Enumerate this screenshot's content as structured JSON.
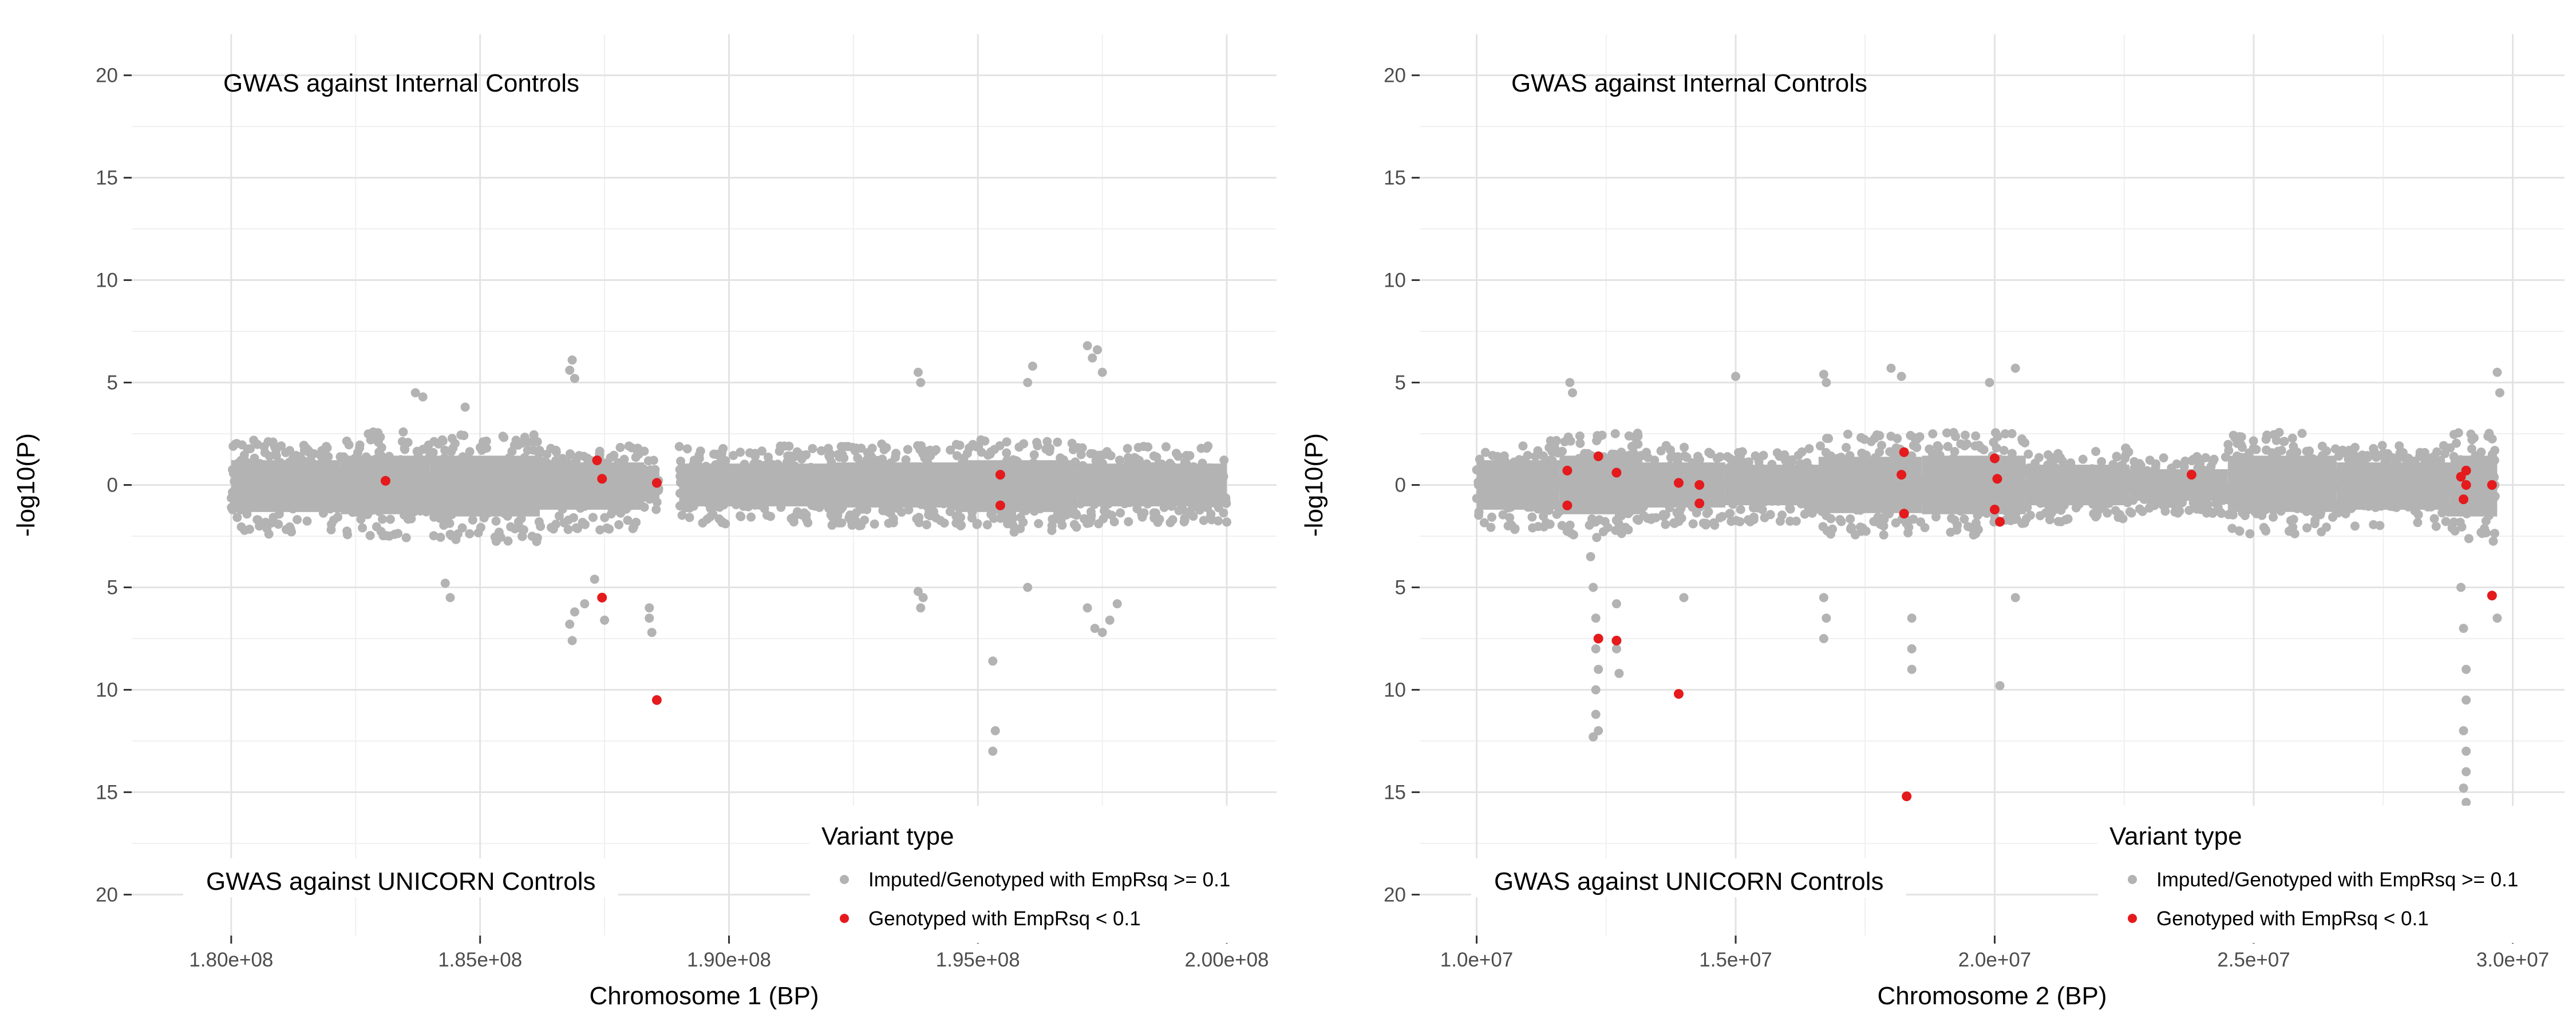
{
  "chart_data": [
    {
      "type": "scatter",
      "xlabel": "Chromosome 1 (BP)",
      "ylabel": "-log10(P)",
      "xlim": [
        178000000,
        201000000
      ],
      "ylim": [
        -22,
        22
      ],
      "x_ticks": [
        {
          "value": 180000000,
          "label": "1.80e+08"
        },
        {
          "value": 185000000,
          "label": "1.85e+08"
        },
        {
          "value": 190000000,
          "label": "1.90e+08"
        },
        {
          "value": 195000000,
          "label": "1.95e+08"
        },
        {
          "value": 200000000,
          "label": "2.00e+08"
        }
      ],
      "y_ticks": [
        {
          "value": 20,
          "label": "20"
        },
        {
          "value": 15,
          "label": "15"
        },
        {
          "value": 10,
          "label": "10"
        },
        {
          "value": 5,
          "label": "5"
        },
        {
          "value": 0,
          "label": "0"
        },
        {
          "value": -5,
          "label": "5"
        },
        {
          "value": -10,
          "label": "10"
        },
        {
          "value": -15,
          "label": "15"
        },
        {
          "value": -20,
          "label": "20"
        }
      ],
      "annotations": [
        "GWAS against Internal Controls",
        "GWAS against UNICORN Controls"
      ],
      "grid": true,
      "legend": {
        "title": "Variant type",
        "placement": "bottom-right",
        "entries": [
          {
            "label": "Imputed/Genotyped with EmpRsq >= 0.1",
            "color": "#b3b3b3"
          },
          {
            "label": "Genotyped with EmpRsq < 0.1",
            "color": "#e41a1c"
          }
        ]
      },
      "series": [
        {
          "name": "Imputed/Genotyped with EmpRsq >= 0.1",
          "color": "#b3b3b3",
          "bands": [
            {
              "x": [
                180000000,
                182200000
              ],
              "top": 2.2,
              "bottom": -2.4
            },
            {
              "x": [
                182200000,
                184000000
              ],
              "top": 2.6,
              "bottom": -2.6
            },
            {
              "x": [
                184000000,
                186200000
              ],
              "top": 2.6,
              "bottom": -2.8
            },
            {
              "x": [
                186200000,
                188300000
              ],
              "top": 2.0,
              "bottom": -2.2
            },
            {
              "x": [
                188300000,
                188600000
              ],
              "top": 1.4,
              "bottom": -1.2
            },
            {
              "x": [
                189000000,
                192000000
              ],
              "top": 1.9,
              "bottom": -1.9
            },
            {
              "x": [
                192000000,
                194600000
              ],
              "top": 2.0,
              "bottom": -2.0
            },
            {
              "x": [
                194600000,
                197000000
              ],
              "top": 2.2,
              "bottom": -2.4
            },
            {
              "x": [
                197000000,
                200000000
              ],
              "top": 1.9,
              "bottom": -1.9
            }
          ],
          "points": [
            {
              "x": 183700000,
              "y": 4.5
            },
            {
              "x": 183850000,
              "y": 4.3
            },
            {
              "x": 184700000,
              "y": 3.8
            },
            {
              "x": 184400000,
              "y": -5.5
            },
            {
              "x": 184300000,
              "y": -4.8
            },
            {
              "x": 186800000,
              "y": 5.6
            },
            {
              "x": 186850000,
              "y": 6.1
            },
            {
              "x": 186900000,
              "y": 5.2
            },
            {
              "x": 186800000,
              "y": -6.8
            },
            {
              "x": 186850000,
              "y": -7.6
            },
            {
              "x": 186900000,
              "y": -6.2
            },
            {
              "x": 187100000,
              "y": -5.8
            },
            {
              "x": 187500000,
              "y": -6.6
            },
            {
              "x": 187300000,
              "y": -4.6
            },
            {
              "x": 188400000,
              "y": -6.0
            },
            {
              "x": 188450000,
              "y": -7.2
            },
            {
              "x": 188400000,
              "y": -6.5
            },
            {
              "x": 193800000,
              "y": 5.5
            },
            {
              "x": 193850000,
              "y": 5.0
            },
            {
              "x": 193800000,
              "y": -5.2
            },
            {
              "x": 193850000,
              "y": -6.0
            },
            {
              "x": 193900000,
              "y": -5.5
            },
            {
              "x": 195300000,
              "y": -8.6
            },
            {
              "x": 195350000,
              "y": -12.0
            },
            {
              "x": 195300000,
              "y": -13.0
            },
            {
              "x": 196000000,
              "y": 5.0
            },
            {
              "x": 196100000,
              "y": 5.8
            },
            {
              "x": 196000000,
              "y": -5.0
            },
            {
              "x": 197200000,
              "y": 6.8
            },
            {
              "x": 197300000,
              "y": 6.2
            },
            {
              "x": 197400000,
              "y": 6.6
            },
            {
              "x": 197500000,
              "y": 5.5
            },
            {
              "x": 197200000,
              "y": -6.0
            },
            {
              "x": 197350000,
              "y": -7.0
            },
            {
              "x": 197500000,
              "y": -7.2
            },
            {
              "x": 197650000,
              "y": -6.6
            },
            {
              "x": 197800000,
              "y": -5.8
            }
          ]
        },
        {
          "name": "Genotyped with EmpRsq < 0.1",
          "color": "#e41a1c",
          "points": [
            {
              "x": 183100000,
              "y": 0.2
            },
            {
              "x": 187350000,
              "y": 1.2
            },
            {
              "x": 187450000,
              "y": 0.3
            },
            {
              "x": 187450000,
              "y": -5.5
            },
            {
              "x": 188550000,
              "y": 0.1
            },
            {
              "x": 188550000,
              "y": -10.5
            },
            {
              "x": 195450000,
              "y": 0.5
            },
            {
              "x": 195450000,
              "y": -1.0
            }
          ]
        }
      ]
    },
    {
      "type": "scatter",
      "xlabel": "Chromosome 2 (BP)",
      "ylabel": "-log10(P)",
      "xlim": [
        8900000,
        31000000
      ],
      "ylim": [
        -22,
        22
      ],
      "x_ticks": [
        {
          "value": 10000000,
          "label": "1.0e+07"
        },
        {
          "value": 15000000,
          "label": "1.5e+07"
        },
        {
          "value": 20000000,
          "label": "2.0e+07"
        },
        {
          "value": 25000000,
          "label": "2.5e+07"
        },
        {
          "value": 30000000,
          "label": "3.0e+07"
        }
      ],
      "y_ticks": [
        {
          "value": 20,
          "label": "20"
        },
        {
          "value": 15,
          "label": "15"
        },
        {
          "value": 10,
          "label": "10"
        },
        {
          "value": 5,
          "label": "5"
        },
        {
          "value": 0,
          "label": "0"
        },
        {
          "value": -5,
          "label": "5"
        },
        {
          "value": -10,
          "label": "10"
        },
        {
          "value": -15,
          "label": "15"
        },
        {
          "value": -20,
          "label": "20"
        }
      ],
      "annotations": [
        "GWAS against Internal Controls",
        "GWAS against UNICORN Controls"
      ],
      "grid": true,
      "legend": {
        "title": "Variant type",
        "placement": "bottom-right",
        "entries": [
          {
            "label": "Imputed/Genotyped with EmpRsq >= 0.1",
            "color": "#b3b3b3"
          },
          {
            "label": "Genotyped with EmpRsq < 0.1",
            "color": "#e41a1c"
          }
        ]
      },
      "series": [
        {
          "name": "Imputed/Genotyped with EmpRsq >= 0.1",
          "color": "#b3b3b3",
          "bands": [
            {
              "x": [
                10000000,
                11600000
              ],
              "top": 2.2,
              "bottom": -2.2
            },
            {
              "x": [
                11600000,
                13200000
              ],
              "top": 2.6,
              "bottom": -2.6
            },
            {
              "x": [
                13200000,
                14800000
              ],
              "top": 2.0,
              "bottom": -2.0
            },
            {
              "x": [
                14800000,
                16600000
              ],
              "top": 1.8,
              "bottom": -1.8
            },
            {
              "x": [
                16600000,
                18600000
              ],
              "top": 2.5,
              "bottom": -2.5
            },
            {
              "x": [
                18600000,
                20600000
              ],
              "top": 2.6,
              "bottom": -2.6
            },
            {
              "x": [
                20600000,
                22600000
              ],
              "top": 1.8,
              "bottom": -1.8
            },
            {
              "x": [
                22600000,
                24500000
              ],
              "top": 1.4,
              "bottom": -1.4
            },
            {
              "x": [
                24500000,
                26600000
              ],
              "top": 2.6,
              "bottom": -2.4
            },
            {
              "x": [
                26600000,
                28800000
              ],
              "top": 2.0,
              "bottom": -2.2
            },
            {
              "x": [
                28800000,
                29700000
              ],
              "top": 2.6,
              "bottom": -2.8
            }
          ],
          "points": [
            {
              "x": 11800000,
              "y": 5.0
            },
            {
              "x": 11850000,
              "y": 4.5
            },
            {
              "x": 12200000,
              "y": -3.5
            },
            {
              "x": 12250000,
              "y": -5.0
            },
            {
              "x": 12300000,
              "y": -6.5
            },
            {
              "x": 12300000,
              "y": -8.0
            },
            {
              "x": 12350000,
              "y": -9.0
            },
            {
              "x": 12300000,
              "y": -10.0
            },
            {
              "x": 12300000,
              "y": -11.2
            },
            {
              "x": 12350000,
              "y": -12.0
            },
            {
              "x": 12250000,
              "y": -12.3
            },
            {
              "x": 12700000,
              "y": -8.0
            },
            {
              "x": 12750000,
              "y": -9.2
            },
            {
              "x": 12700000,
              "y": -5.8
            },
            {
              "x": 14000000,
              "y": -5.5
            },
            {
              "x": 15000000,
              "y": 5.3
            },
            {
              "x": 16700000,
              "y": 5.4
            },
            {
              "x": 16750000,
              "y": 5.0
            },
            {
              "x": 16700000,
              "y": -5.5
            },
            {
              "x": 16750000,
              "y": -6.5
            },
            {
              "x": 16700000,
              "y": -7.5
            },
            {
              "x": 18000000,
              "y": 5.7
            },
            {
              "x": 18200000,
              "y": 5.3
            },
            {
              "x": 18400000,
              "y": -6.5
            },
            {
              "x": 18400000,
              "y": -8.0
            },
            {
              "x": 18400000,
              "y": -9.0
            },
            {
              "x": 19900000,
              "y": 5.0
            },
            {
              "x": 20100000,
              "y": -9.8
            },
            {
              "x": 20400000,
              "y": 5.7
            },
            {
              "x": 20400000,
              "y": -5.5
            },
            {
              "x": 29700000,
              "y": 5.5
            },
            {
              "x": 29750000,
              "y": 4.5
            },
            {
              "x": 29700000,
              "y": -6.5
            },
            {
              "x": 29000000,
              "y": -5.0
            },
            {
              "x": 29050000,
              "y": -7.0
            },
            {
              "x": 29100000,
              "y": -9.0
            },
            {
              "x": 29100000,
              "y": -10.5
            },
            {
              "x": 29050000,
              "y": -12.0
            },
            {
              "x": 29100000,
              "y": -13.0
            },
            {
              "x": 29100000,
              "y": -14.0
            },
            {
              "x": 29050000,
              "y": -14.8
            },
            {
              "x": 29100000,
              "y": -15.5
            },
            {
              "x": 29100000,
              "y": -16.2
            }
          ]
        },
        {
          "name": "Genotyped with EmpRsq < 0.1",
          "color": "#e41a1c",
          "points": [
            {
              "x": 11750000,
              "y": 0.7
            },
            {
              "x": 11750000,
              "y": -1.0
            },
            {
              "x": 12350000,
              "y": 1.4
            },
            {
              "x": 12350000,
              "y": -7.5
            },
            {
              "x": 12700000,
              "y": 0.6
            },
            {
              "x": 12700000,
              "y": -7.6
            },
            {
              "x": 13900000,
              "y": 0.1
            },
            {
              "x": 13900000,
              "y": -10.2
            },
            {
              "x": 14300000,
              "y": 0.0
            },
            {
              "x": 14300000,
              "y": -0.9
            },
            {
              "x": 18200000,
              "y": 0.5
            },
            {
              "x": 18250000,
              "y": 1.6
            },
            {
              "x": 18250000,
              "y": -1.4
            },
            {
              "x": 18300000,
              "y": -15.2
            },
            {
              "x": 20000000,
              "y": 1.3
            },
            {
              "x": 20000000,
              "y": -1.2
            },
            {
              "x": 20050000,
              "y": 0.3
            },
            {
              "x": 20100000,
              "y": -1.8
            },
            {
              "x": 23800000,
              "y": 0.5
            },
            {
              "x": 29000000,
              "y": 0.4
            },
            {
              "x": 29050000,
              "y": -0.7
            },
            {
              "x": 29100000,
              "y": 0.7
            },
            {
              "x": 29100000,
              "y": 0.0
            },
            {
              "x": 29600000,
              "y": 0.0
            },
            {
              "x": 29600000,
              "y": -5.4
            }
          ]
        }
      ]
    }
  ]
}
